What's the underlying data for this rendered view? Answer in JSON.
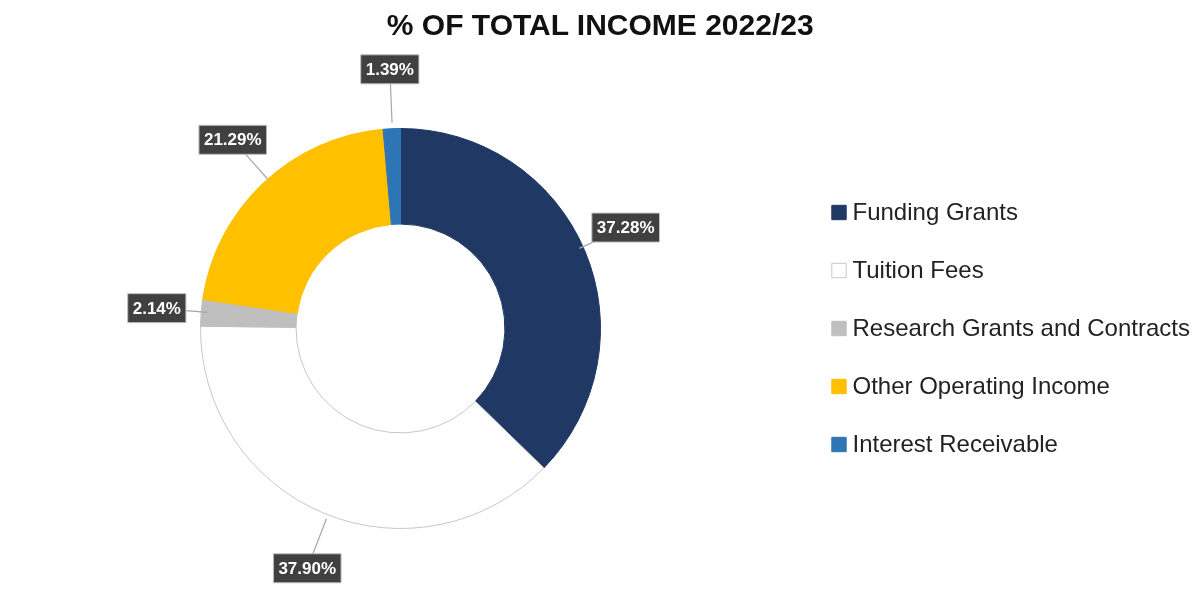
{
  "chart_data": {
    "type": "donut",
    "title": "% OF TOTAL INCOME 2022/23",
    "categories": [
      "Funding Grants",
      "Tuition Fees",
      "Research Grants and Contracts",
      "Other Operating Income",
      "Interest Receivable"
    ],
    "values": [
      37.28,
      37.9,
      2.14,
      21.29,
      1.39
    ],
    "colors": [
      "#1f3864",
      "#ffffff",
      "#bfbfbf",
      "#ffc000",
      "#2e75b6"
    ],
    "value_labels": [
      "37.28%",
      "37.90%",
      "2.14%",
      "21.29%",
      "1.39%"
    ],
    "legend": "right"
  }
}
